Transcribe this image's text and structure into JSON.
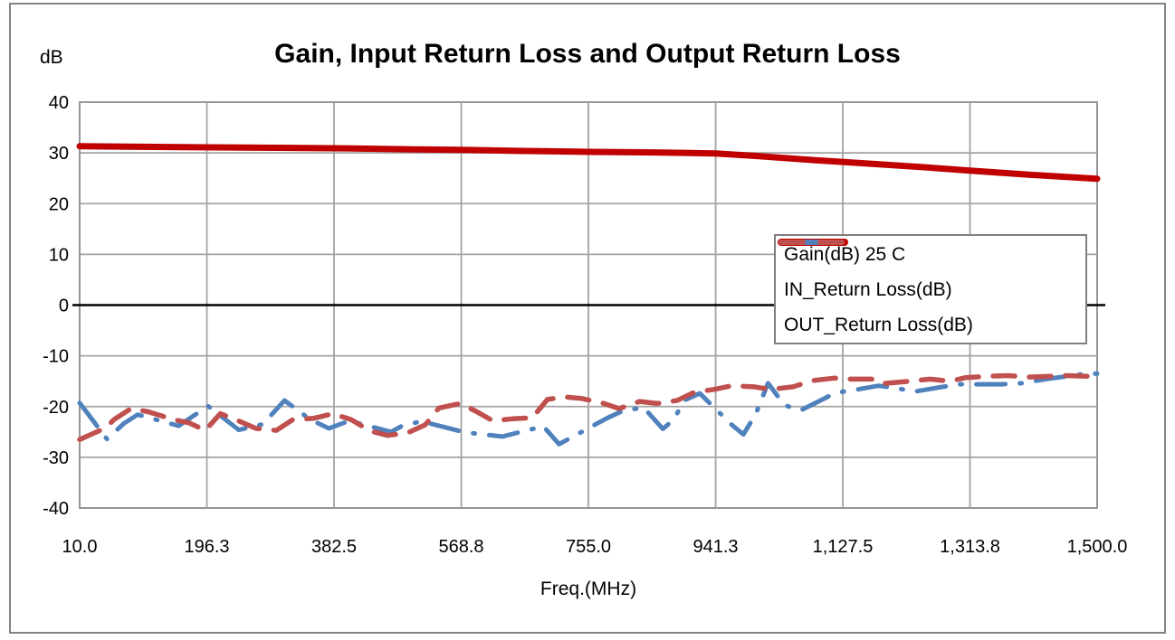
{
  "figure": {
    "background": "#ffffff",
    "border_color": "#848484"
  },
  "chart_data": {
    "type": "line",
    "title": "Gain, Input Return Loss and Output Return Loss",
    "ylabel": "dB",
    "xlabel": "Freq.(MHz)",
    "grid": true,
    "legend_position": "inside-right",
    "colors": {
      "gridline": "#a3a3a3",
      "plot_border": "#969696",
      "zero_axis": "#000000"
    },
    "x_axis": {
      "min": 10,
      "max": 1500,
      "tick_values": [
        10.0,
        196.3,
        382.5,
        568.8,
        755.0,
        941.3,
        1127.5,
        1313.8,
        1500.0
      ],
      "tick_labels": [
        "10.0",
        "196.3",
        "382.5",
        "568.8",
        "755.0",
        "941.3",
        "1,127.5",
        "1,313.8",
        "1,500.0"
      ]
    },
    "y_axis": {
      "min": -40,
      "max": 40,
      "step": 10,
      "tick_labels": [
        "40",
        "30",
        "20",
        "10",
        "0",
        "-10",
        "-20",
        "-30",
        "-40"
      ]
    },
    "series": [
      {
        "name": "Gain(dB) 25 C",
        "color": "#c00000",
        "style": "solid",
        "points": [
          [
            10,
            31.3
          ],
          [
            100,
            31.2
          ],
          [
            200,
            31.1
          ],
          [
            300,
            31.0
          ],
          [
            400,
            30.9
          ],
          [
            500,
            30.7
          ],
          [
            569,
            30.6
          ],
          [
            650,
            30.4
          ],
          [
            755,
            30.2
          ],
          [
            850,
            30.1
          ],
          [
            941,
            29.9
          ],
          [
            1000,
            29.4
          ],
          [
            1083,
            28.6
          ],
          [
            1150,
            28.0
          ],
          [
            1242,
            27.2
          ],
          [
            1314,
            26.5
          ],
          [
            1400,
            25.7
          ],
          [
            1450,
            25.3
          ],
          [
            1500,
            24.9
          ]
        ]
      },
      {
        "name": "IN_Return Loss(dB)",
        "color": "#4f81bd",
        "style": "long-dash-dot",
        "points": [
          [
            10,
            -19.3
          ],
          [
            50,
            -26.4
          ],
          [
            75,
            -23.3
          ],
          [
            95,
            -21.6
          ],
          [
            155,
            -23.8
          ],
          [
            198,
            -19.9
          ],
          [
            243,
            -24.6
          ],
          [
            278,
            -23.5
          ],
          [
            310,
            -18.8
          ],
          [
            348,
            -22.6
          ],
          [
            375,
            -24.3
          ],
          [
            405,
            -22.8
          ],
          [
            466,
            -25.0
          ],
          [
            481,
            -23.9
          ],
          [
            510,
            -22.9
          ],
          [
            575,
            -25.1
          ],
          [
            629,
            -25.9
          ],
          [
            689,
            -23.9
          ],
          [
            712,
            -27.4
          ],
          [
            782,
            -22.3
          ],
          [
            806,
            -20.8
          ],
          [
            836,
            -20.2
          ],
          [
            864,
            -24.4
          ],
          [
            880,
            -22.6
          ],
          [
            895,
            -18.8
          ],
          [
            918,
            -17.4
          ],
          [
            965,
            -23.6
          ],
          [
            982,
            -25.5
          ],
          [
            1000,
            -21.5
          ],
          [
            1018,
            -15.4
          ],
          [
            1042,
            -19.7
          ],
          [
            1065,
            -20.8
          ],
          [
            1117,
            -17.3
          ],
          [
            1146,
            -16.7
          ],
          [
            1180,
            -15.9
          ],
          [
            1235,
            -17.0
          ],
          [
            1270,
            -16.2
          ],
          [
            1300,
            -15.6
          ],
          [
            1360,
            -15.6
          ],
          [
            1390,
            -15.4
          ],
          [
            1425,
            -14.6
          ],
          [
            1480,
            -13.6
          ],
          [
            1500,
            -13.5
          ]
        ]
      },
      {
        "name": "OUT_Return Loss(dB)",
        "color": "#c0504d",
        "style": "dash",
        "points": [
          [
            10,
            -26.5
          ],
          [
            48,
            -24.2
          ],
          [
            60,
            -22.6
          ],
          [
            85,
            -20.4
          ],
          [
            110,
            -21.0
          ],
          [
            148,
            -22.6
          ],
          [
            170,
            -23.2
          ],
          [
            194,
            -24.7
          ],
          [
            216,
            -21.4
          ],
          [
            244,
            -22.9
          ],
          [
            268,
            -24.3
          ],
          [
            298,
            -24.7
          ],
          [
            322,
            -22.6
          ],
          [
            353,
            -22.3
          ],
          [
            381,
            -21.4
          ],
          [
            408,
            -22.6
          ],
          [
            435,
            -24.8
          ],
          [
            461,
            -25.7
          ],
          [
            490,
            -25.2
          ],
          [
            516,
            -23.6
          ],
          [
            536,
            -20.3
          ],
          [
            567,
            -19.4
          ],
          [
            590,
            -20.9
          ],
          [
            615,
            -22.8
          ],
          [
            645,
            -22.4
          ],
          [
            673,
            -22.2
          ],
          [
            695,
            -18.6
          ],
          [
            720,
            -18.1
          ],
          [
            745,
            -18.4
          ],
          [
            775,
            -19.3
          ],
          [
            800,
            -20.4
          ],
          [
            830,
            -19.0
          ],
          [
            856,
            -19.4
          ],
          [
            885,
            -18.8
          ],
          [
            910,
            -17.2
          ],
          [
            940,
            -16.6
          ],
          [
            965,
            -15.9
          ],
          [
            997,
            -16.1
          ],
          [
            1022,
            -16.6
          ],
          [
            1055,
            -16.1
          ],
          [
            1082,
            -14.9
          ],
          [
            1115,
            -14.4
          ],
          [
            1140,
            -14.6
          ],
          [
            1172,
            -14.6
          ],
          [
            1185,
            -15.5
          ],
          [
            1225,
            -15.0
          ],
          [
            1255,
            -14.6
          ],
          [
            1285,
            -15.0
          ],
          [
            1307,
            -14.3
          ],
          [
            1344,
            -14.0
          ],
          [
            1370,
            -13.9
          ],
          [
            1400,
            -14.2
          ],
          [
            1455,
            -13.9
          ],
          [
            1500,
            -14.1
          ]
        ]
      }
    ]
  }
}
